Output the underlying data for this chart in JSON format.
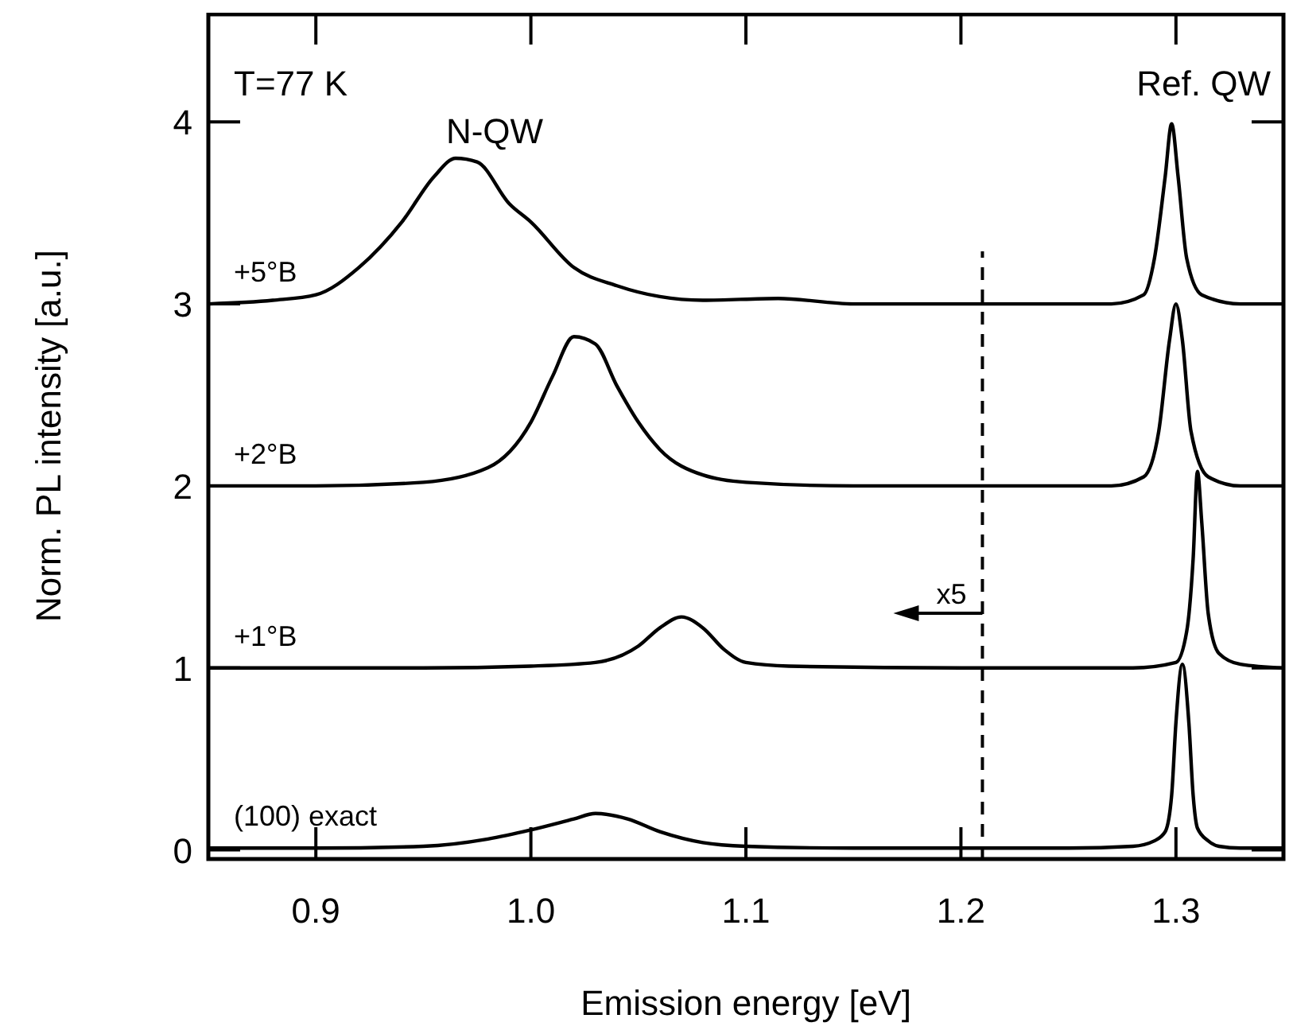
{
  "chart_data": {
    "type": "line",
    "xlabel": "Emission energy [eV]",
    "ylabel": "Norm. PL intensity [a.u.]",
    "xlim": [
      0.85,
      1.35
    ],
    "ylim": [
      -0.05,
      4.6
    ],
    "xticks": [
      0.9,
      {
        "value": 1,
        "label": "1.0"
      },
      1.1,
      1.2,
      1.3
    ],
    "yticks": [
      0,
      1,
      2,
      3,
      4
    ],
    "grid": false,
    "marker": "none",
    "line_style": "solid",
    "ref_lines": [
      {
        "axis": "x",
        "value": 1.21,
        "line_style": "dashed",
        "color": "#000000"
      }
    ],
    "annotations": [
      "T=77 K",
      "N-QW",
      "Ref. QW",
      {
        "text": "x5",
        "x": 1.21,
        "y": 1.3
      }
    ],
    "series": [
      {
        "name": "(100) exact",
        "color": "#000000",
        "x": [
          0.85,
          0.9,
          0.95,
          0.98,
          1.0,
          1.02,
          1.03,
          1.045,
          1.06,
          1.08,
          1.1,
          1.15,
          1.2,
          1.25,
          1.28,
          1.29,
          1.295,
          1.298,
          1.3,
          1.303,
          1.306,
          1.308,
          1.31,
          1.315,
          1.32,
          1.33,
          1.35
        ],
        "values": [
          0.01,
          0.01,
          0.02,
          0.06,
          0.11,
          0.17,
          0.2,
          0.17,
          0.1,
          0.04,
          0.02,
          0.01,
          0.01,
          0.01,
          0.02,
          0.05,
          0.1,
          0.3,
          0.7,
          1.02,
          0.7,
          0.3,
          0.12,
          0.05,
          0.02,
          0.01,
          0.01
        ]
      },
      {
        "name": "+1°B",
        "color": "#000000",
        "x": [
          0.85,
          0.95,
          1.0,
          1.03,
          1.05,
          1.06,
          1.07,
          1.08,
          1.09,
          1.1,
          1.12,
          1.2,
          1.28,
          1.3,
          1.305,
          1.308,
          1.31,
          1.312,
          1.315,
          1.32,
          1.33,
          1.35
        ],
        "values": [
          1,
          1,
          1.01,
          1.03,
          1.12,
          1.22,
          1.28,
          1.22,
          1.1,
          1.03,
          1.01,
          1,
          1,
          1.03,
          1.2,
          1.6,
          2.08,
          1.8,
          1.3,
          1.08,
          1.02,
          1
        ]
      },
      {
        "name": "+2°B",
        "color": "#000000",
        "x": [
          0.85,
          0.9,
          0.95,
          0.98,
          1.0,
          1.01,
          1.02,
          1.03,
          1.04,
          1.05,
          1.06,
          1.08,
          1.1,
          1.15,
          1.2,
          1.27,
          1.285,
          1.292,
          1.297,
          1.3,
          1.303,
          1.307,
          1.315,
          1.33,
          1.35
        ],
        "values": [
          2,
          2,
          2.02,
          2.1,
          2.35,
          2.6,
          2.82,
          2.78,
          2.55,
          2.35,
          2.2,
          2.06,
          2.02,
          2.0,
          2,
          2,
          2.05,
          2.3,
          2.8,
          3.0,
          2.8,
          2.3,
          2.05,
          2.0,
          2
        ]
      },
      {
        "name": "+5°B",
        "color": "#000000",
        "x": [
          0.85,
          0.88,
          0.9,
          0.92,
          0.94,
          0.955,
          0.965,
          0.975,
          0.99,
          1.0,
          1.02,
          1.04,
          1.06,
          1.08,
          1.115,
          1.15,
          1.2,
          1.27,
          1.285,
          1.29,
          1.295,
          1.298,
          1.301,
          1.305,
          1.312,
          1.33,
          1.35
        ],
        "values": [
          3,
          3.02,
          3.05,
          3.2,
          3.45,
          3.7,
          3.8,
          3.78,
          3.55,
          3.45,
          3.2,
          3.1,
          3.04,
          3.02,
          3.03,
          3.0,
          3,
          3,
          3.05,
          3.25,
          3.7,
          3.99,
          3.7,
          3.25,
          3.05,
          3,
          3
        ]
      }
    ]
  }
}
